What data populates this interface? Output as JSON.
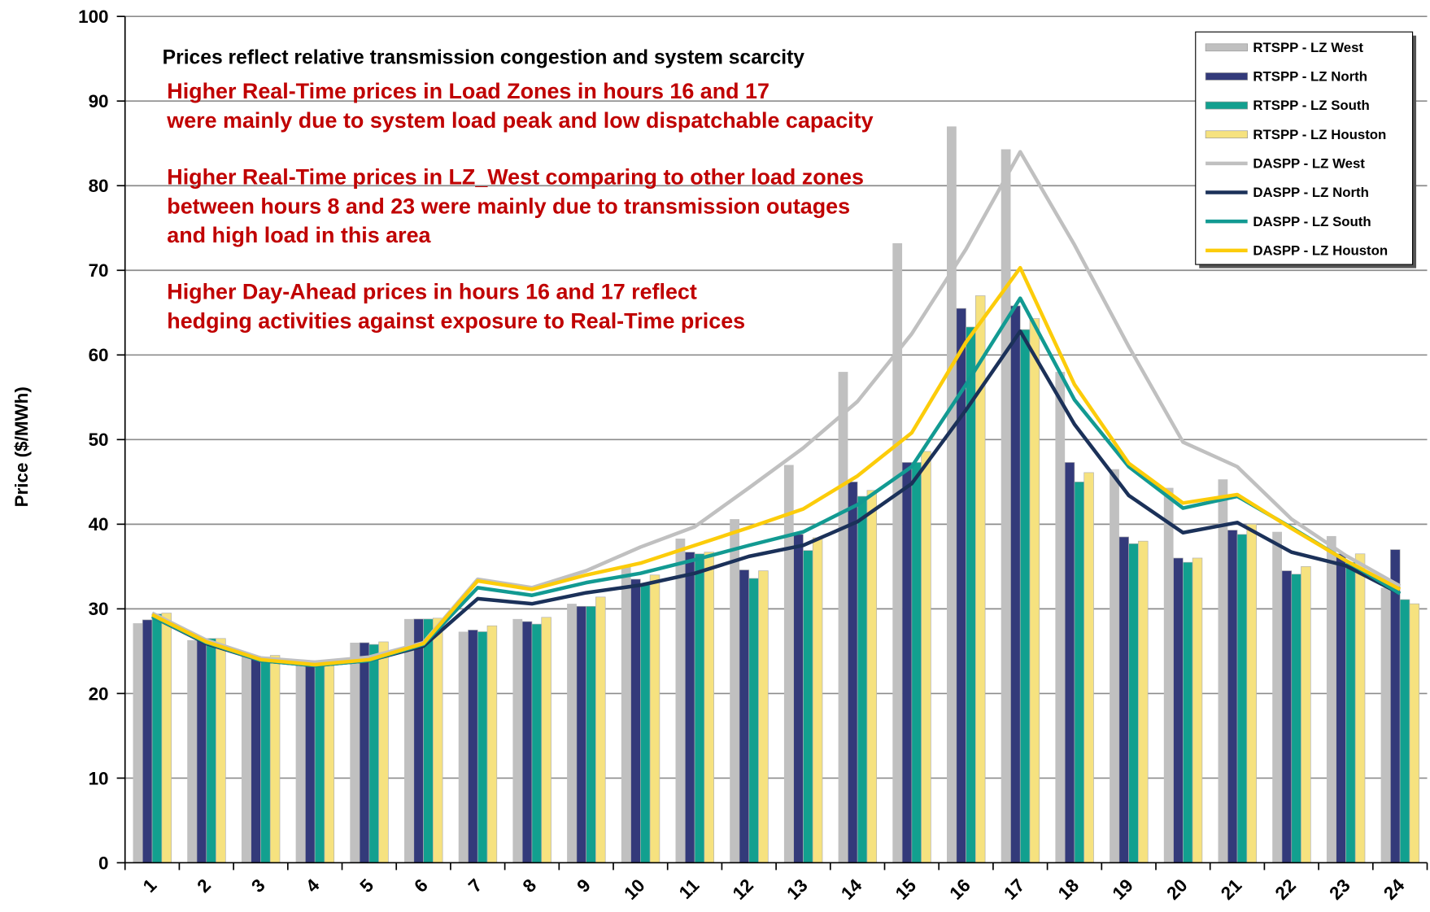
{
  "chart_data": {
    "type": "bar",
    "y_label": "Price ($/MWh)",
    "categories": [
      "1",
      "2",
      "3",
      "4",
      "5",
      "6",
      "7",
      "8",
      "9",
      "10",
      "11",
      "12",
      "13",
      "14",
      "15",
      "16",
      "17",
      "18",
      "19",
      "20",
      "21",
      "22",
      "23",
      "24"
    ],
    "ylim": [
      0,
      100
    ],
    "yticks": [
      0,
      10,
      20,
      30,
      40,
      50,
      60,
      70,
      80,
      90,
      100
    ],
    "grid": true,
    "legend": "upper right",
    "annotations": [
      {
        "text": "Prices reflect relative transmission congestion and system scarcity",
        "color": "#000000"
      },
      {
        "text": "Higher Real-Time prices in Load Zones in hours 16 and 17",
        "color": "#c00000"
      },
      {
        "text": "were mainly due to system load peak and low dispatchable capacity",
        "color": "#c00000"
      },
      {
        "text": "Higher Real-Time prices in LZ_West comparing to other load zones",
        "color": "#c00000"
      },
      {
        "text": "between hours 8 and 23 were mainly due to transmission outages",
        "color": "#c00000"
      },
      {
        "text": "and high load in this area",
        "color": "#c00000"
      },
      {
        "text": "Higher Day-Ahead prices in hours 16 and 17 reflect",
        "color": "#c00000"
      },
      {
        "text": "hedging activities against exposure to Real-Time prices",
        "color": "#c00000"
      }
    ],
    "series": [
      {
        "name": "RTSPP - LZ West",
        "type": "bar",
        "color": "#c0c0c0",
        "values": [
          28.3,
          26.3,
          24.5,
          23.5,
          26,
          28.8,
          27.3,
          28.8,
          30.6,
          35,
          38.3,
          40.6,
          47,
          58,
          73.2,
          87,
          84.3,
          58,
          46.5,
          44.3,
          45.3,
          39.1,
          38.6,
          32.5
        ]
      },
      {
        "name": "RTSPP - LZ North",
        "type": "bar",
        "color": "#333a7a",
        "values": [
          28.7,
          26.5,
          24.4,
          23.4,
          26,
          28.8,
          27.5,
          28.5,
          30.3,
          33.5,
          36.7,
          34.6,
          38.8,
          45,
          47.3,
          65.5,
          65.8,
          47.3,
          38.5,
          36,
          39.3,
          34.5,
          36.5,
          37
        ]
      },
      {
        "name": "RTSPP - LZ South",
        "type": "bar",
        "color": "#12a08f",
        "values": [
          29.4,
          26.5,
          24.3,
          23.2,
          25.8,
          28.8,
          27.3,
          28.2,
          30.3,
          33,
          36.5,
          33.6,
          36.9,
          43.3,
          47.3,
          63.3,
          63,
          45,
          37.7,
          35.5,
          38.8,
          34.1,
          35.5,
          31.1
        ]
      },
      {
        "name": "RTSPP - LZ Houston",
        "type": "bar",
        "color": "#f6e27f",
        "values": [
          29.5,
          26.5,
          24.5,
          23.5,
          26.1,
          28.9,
          28,
          29,
          31.4,
          34,
          36.7,
          34.5,
          38.4,
          44,
          48.6,
          67,
          64.3,
          46.1,
          38,
          36,
          40,
          35,
          36.5,
          30.6
        ]
      },
      {
        "name": "DASPP - LZ West",
        "type": "line",
        "color": "#c0c0c0",
        "values": [
          29.5,
          26.3,
          24.2,
          23.7,
          24.3,
          26,
          33.5,
          32.5,
          34.5,
          37.3,
          39.7,
          44.3,
          49,
          54.5,
          62.5,
          72.5,
          84,
          73,
          61,
          49.7,
          46.8,
          40.6,
          36.3,
          32.7
        ]
      },
      {
        "name": "DASPP - LZ North",
        "type": "line",
        "color": "#1b3159",
        "values": [
          29.1,
          25.9,
          23.9,
          23.3,
          23.9,
          25.6,
          31.2,
          30.6,
          31.9,
          32.8,
          34.2,
          36.2,
          37.5,
          40.3,
          44.8,
          53.5,
          62.8,
          51.8,
          43.4,
          39,
          40.2,
          36.7,
          35.1,
          31.8
        ]
      },
      {
        "name": "DASPP - LZ South",
        "type": "line",
        "color": "#129a92",
        "values": [
          29.1,
          26,
          23.9,
          23.3,
          23.9,
          25.8,
          32.5,
          31.6,
          33.1,
          34.2,
          35.8,
          37.5,
          39.1,
          42.3,
          46.8,
          56.5,
          66.7,
          54.7,
          46.8,
          41.9,
          43.3,
          39.6,
          35.7,
          31.8
        ]
      },
      {
        "name": "DASPP - LZ Houston",
        "type": "line",
        "color": "#fccc0a",
        "values": [
          29.3,
          26.1,
          24,
          23.4,
          24,
          25.9,
          33.3,
          32.3,
          34,
          35.4,
          37.5,
          39.6,
          41.8,
          45.7,
          50.8,
          61.5,
          70.3,
          56.5,
          47.2,
          42.5,
          43.5,
          39.5,
          35.7,
          32.3
        ]
      }
    ]
  }
}
